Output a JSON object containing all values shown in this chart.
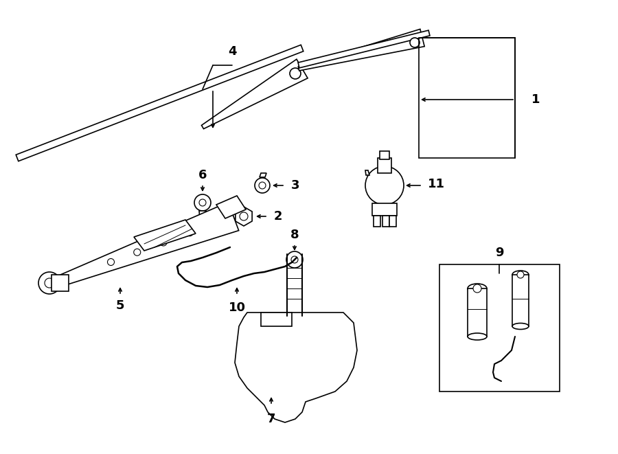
{
  "bg": "#ffffff",
  "lc": "#000000",
  "lw": 1.2,
  "figsize": [
    9.0,
    6.61
  ],
  "dpi": 100,
  "xlim": [
    0,
    900
  ],
  "ylim": [
    0,
    661
  ]
}
